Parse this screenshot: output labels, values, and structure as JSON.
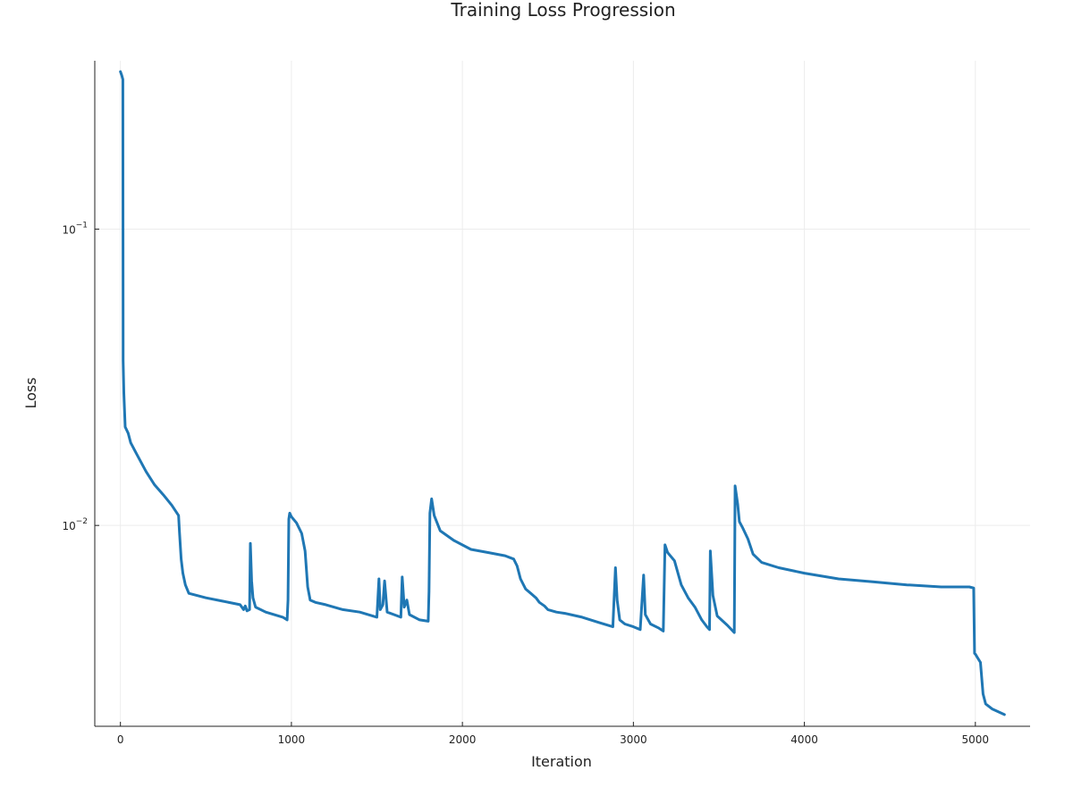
{
  "chart_data": {
    "type": "line",
    "title": "Training Loss Progression",
    "xlabel": "Iteration",
    "ylabel": "Loss",
    "xscale": "linear",
    "yscale": "log",
    "xlim": [
      -150,
      5320
    ],
    "ylim": [
      0.0021,
      0.37
    ],
    "grid": true,
    "legend": "none",
    "x_ticks": [
      0,
      1000,
      2000,
      3000,
      4000,
      5000
    ],
    "x_tick_labels": [
      "0",
      "1000",
      "2000",
      "3000",
      "4000",
      "5000"
    ],
    "y_ticks": [
      0.01,
      0.1
    ],
    "y_tick_labels": [
      {
        "base": "10",
        "exp": "−2"
      },
      {
        "base": "10",
        "exp": "−1"
      }
    ],
    "series": [
      {
        "color": "#1f77b4",
        "points": [
          [
            0,
            0.34
          ],
          [
            8,
            0.33
          ],
          [
            14,
            0.32
          ],
          [
            16,
            0.036
          ],
          [
            20,
            0.028
          ],
          [
            28,
            0.0215
          ],
          [
            45,
            0.0205
          ],
          [
            60,
            0.019
          ],
          [
            100,
            0.0172
          ],
          [
            150,
            0.0152
          ],
          [
            200,
            0.0137
          ],
          [
            250,
            0.0127
          ],
          [
            300,
            0.0117
          ],
          [
            340,
            0.0108
          ],
          [
            345,
            0.0095
          ],
          [
            355,
            0.0077
          ],
          [
            365,
            0.0069
          ],
          [
            380,
            0.0063
          ],
          [
            400,
            0.0059
          ],
          [
            500,
            0.0057
          ],
          [
            600,
            0.00555
          ],
          [
            700,
            0.0054
          ],
          [
            720,
            0.0052
          ],
          [
            730,
            0.00535
          ],
          [
            740,
            0.00515
          ],
          [
            755,
            0.0052
          ],
          [
            760,
            0.0087
          ],
          [
            767,
            0.0065
          ],
          [
            775,
            0.0057
          ],
          [
            790,
            0.0053
          ],
          [
            850,
            0.0051
          ],
          [
            950,
            0.0049
          ],
          [
            975,
            0.0048
          ],
          [
            980,
            0.0056
          ],
          [
            985,
            0.0105
          ],
          [
            990,
            0.011
          ],
          [
            1000,
            0.0107
          ],
          [
            1030,
            0.0102
          ],
          [
            1060,
            0.0094
          ],
          [
            1080,
            0.0082
          ],
          [
            1095,
            0.0062
          ],
          [
            1110,
            0.0056
          ],
          [
            1140,
            0.0055
          ],
          [
            1200,
            0.0054
          ],
          [
            1300,
            0.0052
          ],
          [
            1400,
            0.0051
          ],
          [
            1500,
            0.0049
          ],
          [
            1512,
            0.0066
          ],
          [
            1520,
            0.0052
          ],
          [
            1535,
            0.0054
          ],
          [
            1545,
            0.0065
          ],
          [
            1560,
            0.0051
          ],
          [
            1600,
            0.005
          ],
          [
            1640,
            0.0049
          ],
          [
            1648,
            0.0067
          ],
          [
            1660,
            0.0053
          ],
          [
            1675,
            0.0056
          ],
          [
            1690,
            0.005
          ],
          [
            1750,
            0.0048
          ],
          [
            1800,
            0.00475
          ],
          [
            1805,
            0.006
          ],
          [
            1810,
            0.011
          ],
          [
            1820,
            0.0123
          ],
          [
            1835,
            0.0108
          ],
          [
            1870,
            0.0096
          ],
          [
            1950,
            0.0089
          ],
          [
            2050,
            0.0083
          ],
          [
            2150,
            0.0081
          ],
          [
            2250,
            0.0079
          ],
          [
            2300,
            0.0077
          ],
          [
            2320,
            0.0073
          ],
          [
            2340,
            0.0066
          ],
          [
            2370,
            0.0061
          ],
          [
            2400,
            0.0059
          ],
          [
            2430,
            0.0057
          ],
          [
            2450,
            0.0055
          ],
          [
            2480,
            0.00535
          ],
          [
            2500,
            0.0052
          ],
          [
            2550,
            0.0051
          ],
          [
            2600,
            0.00505
          ],
          [
            2700,
            0.0049
          ],
          [
            2800,
            0.0047
          ],
          [
            2880,
            0.00455
          ],
          [
            2895,
            0.0072
          ],
          [
            2905,
            0.0056
          ],
          [
            2920,
            0.0048
          ],
          [
            2950,
            0.00465
          ],
          [
            3000,
            0.00455
          ],
          [
            3040,
            0.00445
          ],
          [
            3060,
            0.0068
          ],
          [
            3070,
            0.005
          ],
          [
            3100,
            0.00465
          ],
          [
            3150,
            0.0045
          ],
          [
            3175,
            0.0044
          ],
          [
            3185,
            0.0086
          ],
          [
            3200,
            0.0081
          ],
          [
            3240,
            0.0076
          ],
          [
            3280,
            0.0063
          ],
          [
            3320,
            0.0057
          ],
          [
            3360,
            0.0053
          ],
          [
            3400,
            0.0048
          ],
          [
            3430,
            0.00455
          ],
          [
            3445,
            0.00445
          ],
          [
            3450,
            0.0082
          ],
          [
            3465,
            0.0058
          ],
          [
            3490,
            0.00495
          ],
          [
            3550,
            0.0046
          ],
          [
            3590,
            0.00435
          ],
          [
            3595,
            0.0136
          ],
          [
            3610,
            0.0118
          ],
          [
            3620,
            0.0103
          ],
          [
            3640,
            0.0098
          ],
          [
            3670,
            0.009
          ],
          [
            3700,
            0.008
          ],
          [
            3750,
            0.0075
          ],
          [
            3850,
            0.0072
          ],
          [
            4000,
            0.0069
          ],
          [
            4200,
            0.0066
          ],
          [
            4400,
            0.00645
          ],
          [
            4600,
            0.0063
          ],
          [
            4800,
            0.0062
          ],
          [
            4950,
            0.0062
          ],
          [
            4965,
            0.0062
          ],
          [
            4975,
            0.00618
          ],
          [
            4990,
            0.00615
          ],
          [
            4995,
            0.0037
          ],
          [
            5000,
            0.00368
          ],
          [
            5010,
            0.0036
          ],
          [
            5030,
            0.00345
          ],
          [
            5045,
            0.0027
          ],
          [
            5060,
            0.0025
          ],
          [
            5100,
            0.0024
          ],
          [
            5170,
            0.0023
          ]
        ]
      }
    ]
  }
}
